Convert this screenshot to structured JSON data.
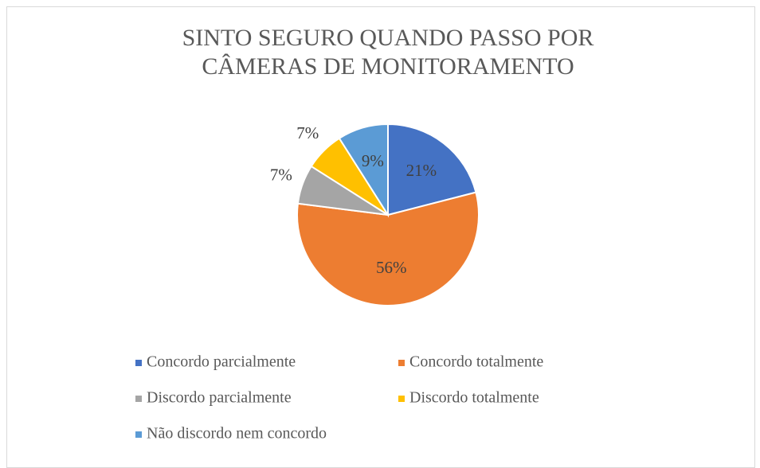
{
  "chart_data": {
    "type": "pie",
    "title": "SINTO SEGURO QUANDO PASSO POR CÂMERAS DE MONITORAMENTO",
    "categories": [
      "Concordo parcialmente",
      "Concordo totalmente",
      "Discordo parcialmente",
      "Discordo totalmente",
      "Não discordo nem concordo"
    ],
    "values": [
      21,
      56,
      7,
      7,
      9
    ],
    "value_labels": [
      "21%",
      "56%",
      "7%",
      "7%",
      "9%"
    ],
    "colors": [
      "#4472c4",
      "#ed7d31",
      "#a5a5a5",
      "#ffc000",
      "#5b9bd5"
    ],
    "legend": "bottom"
  }
}
